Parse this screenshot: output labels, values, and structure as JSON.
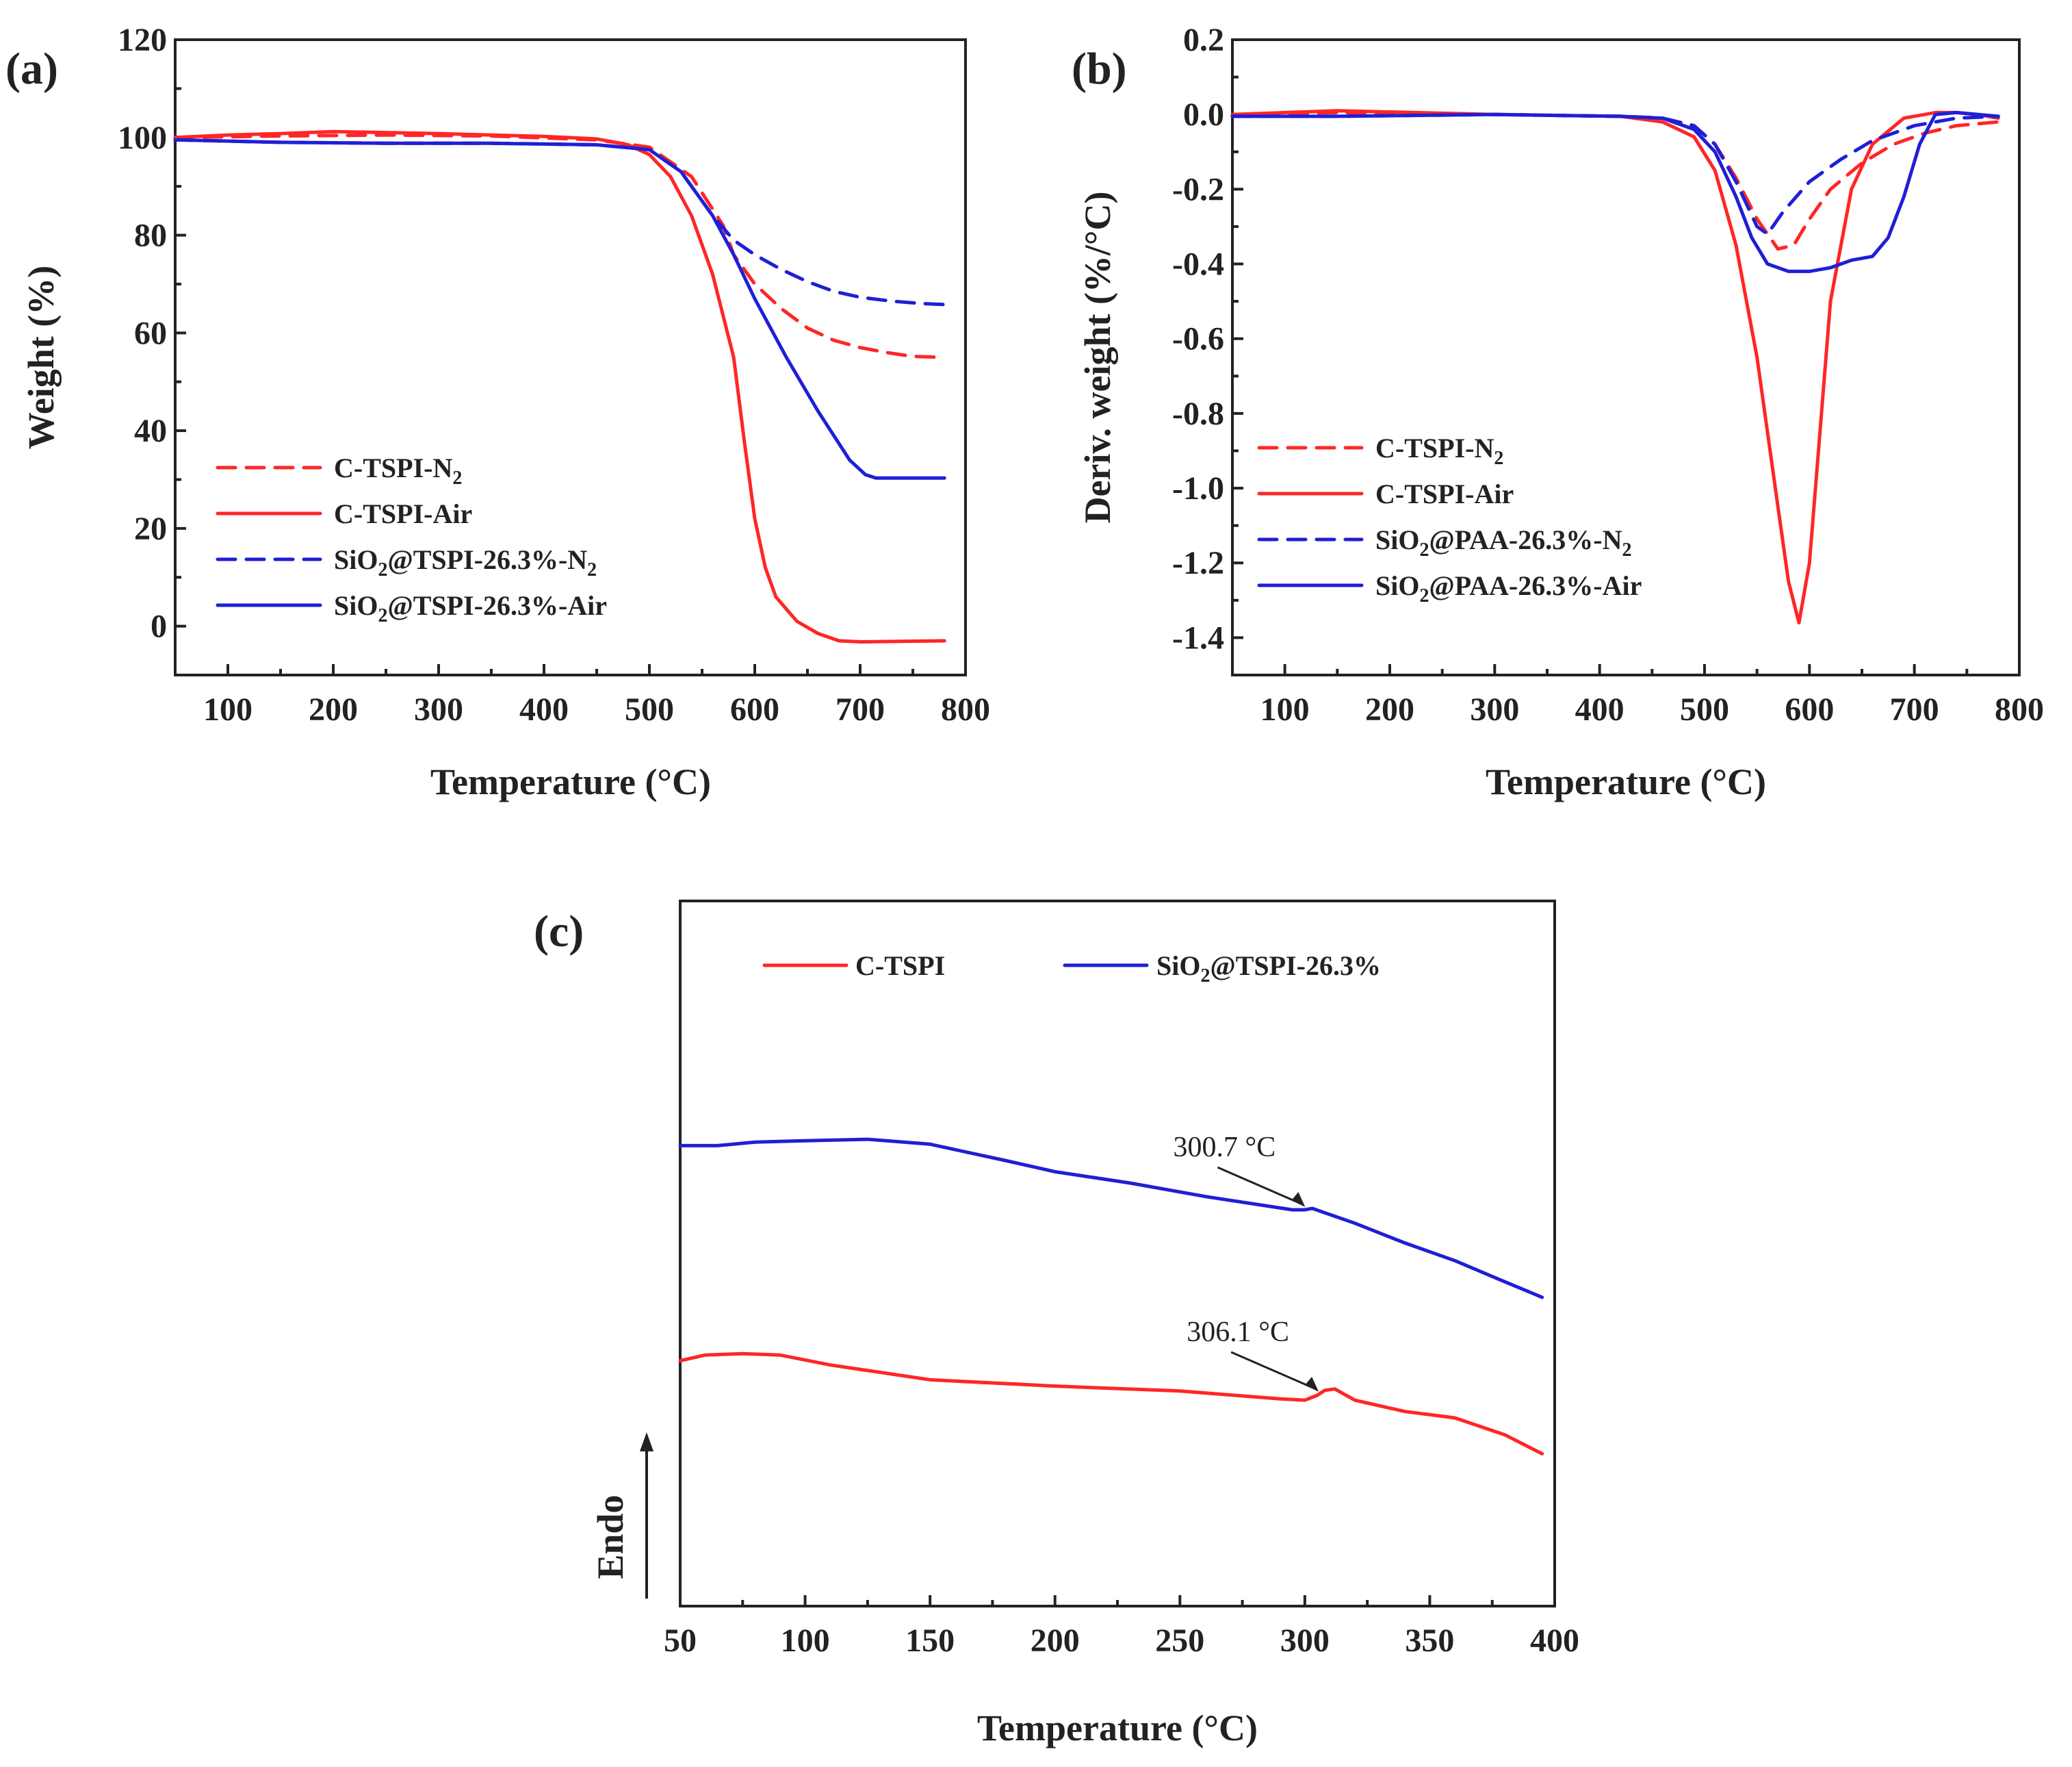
{
  "figure": {
    "colors": {
      "red": "#ff2626",
      "blue": "#1f1fd6",
      "axis": "#222222"
    }
  },
  "chart_data": [
    {
      "panel": "(a)",
      "type": "line",
      "title": "",
      "xlabel": "Temperature (°C)",
      "ylabel": "Weight (%)",
      "xlim": [
        50,
        800
      ],
      "ylim": [
        -10,
        120
      ],
      "xticks": [
        100,
        200,
        300,
        400,
        500,
        600,
        700,
        800
      ],
      "yticks": [
        0,
        20,
        40,
        60,
        80,
        100,
        120
      ],
      "legend_position": "lower-left",
      "series": [
        {
          "name": "C-TSPI-N",
          "sub": "2",
          "suffix": "",
          "color": "#ff2626",
          "dash": true,
          "x": [
            50,
            150,
            250,
            350,
            450,
            500,
            540,
            570,
            580,
            600,
            625,
            650,
            675,
            700,
            725,
            750,
            780
          ],
          "y": [
            100,
            100.3,
            100.5,
            100.3,
            99.5,
            98,
            92,
            82,
            76,
            70,
            65,
            61,
            58.5,
            57,
            56,
            55.2,
            55
          ]
        },
        {
          "name": "C-TSPI-Air",
          "sub": "",
          "suffix": "",
          "color": "#ff2626",
          "dash": false,
          "x": [
            50,
            100,
            150,
            200,
            250,
            300,
            350,
            400,
            450,
            480,
            500,
            520,
            540,
            560,
            580,
            590,
            600,
            610,
            620,
            640,
            660,
            680,
            700,
            740,
            780
          ],
          "y": [
            100,
            100.5,
            100.8,
            101.2,
            101,
            100.8,
            100.5,
            100.2,
            99.7,
            98.5,
            96.5,
            92,
            84,
            72,
            55,
            38,
            22,
            12,
            6,
            1,
            -1.5,
            -3,
            -3.2,
            -3.1,
            -3
          ]
        },
        {
          "name": "SiO",
          "sub": "2",
          "suffix": "@TSPI-26.3%-N",
          "sub2": "2",
          "color": "#1f1fd6",
          "dash": true,
          "x": [
            50,
            150,
            250,
            350,
            450,
            500,
            530,
            560,
            580,
            600,
            625,
            650,
            675,
            700,
            730,
            760,
            780
          ],
          "y": [
            99.5,
            99,
            98.8,
            98.8,
            98.5,
            97.5,
            93,
            84,
            79,
            76,
            73,
            70.5,
            68.5,
            67.3,
            66.5,
            66,
            65.8
          ]
        },
        {
          "name": "SiO",
          "sub": "2",
          "suffix": "@TSPI-26.3%-Air",
          "sub2": "",
          "color": "#1f1fd6",
          "dash": false,
          "x": [
            50,
            150,
            250,
            350,
            450,
            500,
            530,
            560,
            580,
            600,
            630,
            660,
            690,
            705,
            715,
            740,
            780
          ],
          "y": [
            99.5,
            99,
            98.8,
            98.8,
            98.5,
            97.5,
            93,
            84,
            76,
            67,
            55,
            44,
            34,
            31,
            30.3,
            30.3,
            30.3
          ]
        }
      ]
    },
    {
      "panel": "(b)",
      "type": "line",
      "title": "",
      "xlabel": "Temperature (°C)",
      "ylabel": "Deriv. weight (%/°C)",
      "xlim": [
        50,
        800
      ],
      "ylim": [
        -1.5,
        0.2
      ],
      "xticks": [
        100,
        200,
        300,
        400,
        500,
        600,
        700,
        800
      ],
      "yticks": [
        0.2,
        0.0,
        -0.2,
        -0.4,
        -0.6,
        -0.8,
        -1.0,
        -1.2,
        -1.4
      ],
      "ytick_labels": [
        "0.2",
        "0.0",
        "-0.2",
        "-0.4",
        "-0.6",
        "-0.8",
        "-1.0",
        "-1.2",
        "-1.4"
      ],
      "legend_position": "lower-left",
      "series": [
        {
          "name": "C-TSPI-N",
          "sub": "2",
          "suffix": "",
          "color": "#ff2626",
          "dash": true,
          "x": [
            50,
            150,
            300,
            420,
            460,
            490,
            510,
            530,
            550,
            570,
            585,
            600,
            620,
            650,
            680,
            710,
            740,
            780
          ],
          "y": [
            0.0,
            0.005,
            0.0,
            -0.005,
            -0.01,
            -0.03,
            -0.08,
            -0.17,
            -0.28,
            -0.36,
            -0.35,
            -0.28,
            -0.2,
            -0.13,
            -0.08,
            -0.05,
            -0.03,
            -0.02
          ]
        },
        {
          "name": "C-TSPI-Air",
          "sub": "",
          "suffix": "",
          "color": "#ff2626",
          "dash": false,
          "x": [
            50,
            150,
            300,
            420,
            460,
            490,
            510,
            530,
            550,
            560,
            570,
            580,
            590,
            600,
            610,
            620,
            640,
            660,
            690,
            720,
            740,
            760,
            780
          ],
          "y": [
            0.0,
            0.01,
            0.0,
            -0.005,
            -0.02,
            -0.06,
            -0.15,
            -0.35,
            -0.65,
            -0.85,
            -1.05,
            -1.25,
            -1.36,
            -1.2,
            -0.85,
            -0.5,
            -0.2,
            -0.08,
            -0.01,
            0.005,
            0.005,
            0.0,
            -0.01
          ]
        },
        {
          "name": "SiO",
          "sub": "2",
          "suffix": "@PAA-26.3%-N",
          "sub2": "2",
          "color": "#1f1fd6",
          "dash": true,
          "x": [
            50,
            150,
            300,
            420,
            460,
            490,
            510,
            530,
            550,
            560,
            575,
            600,
            630,
            660,
            700,
            740,
            780
          ],
          "y": [
            -0.005,
            -0.005,
            0.0,
            -0.005,
            -0.01,
            -0.03,
            -0.08,
            -0.18,
            -0.3,
            -0.32,
            -0.26,
            -0.18,
            -0.12,
            -0.07,
            -0.03,
            -0.01,
            -0.005
          ]
        },
        {
          "name": "SiO",
          "sub": "2",
          "suffix": "@PAA-26.3%-Air",
          "sub2": "",
          "color": "#1f1fd6",
          "dash": false,
          "x": [
            50,
            150,
            300,
            420,
            460,
            490,
            510,
            530,
            545,
            560,
            580,
            600,
            620,
            640,
            660,
            675,
            690,
            705,
            720,
            740,
            780
          ],
          "y": [
            -0.005,
            -0.005,
            0.0,
            -0.005,
            -0.01,
            -0.04,
            -0.1,
            -0.22,
            -0.33,
            -0.4,
            -0.42,
            -0.42,
            -0.41,
            -0.39,
            -0.38,
            -0.33,
            -0.22,
            -0.08,
            0.0,
            0.005,
            -0.005
          ]
        }
      ]
    },
    {
      "panel": "(c)",
      "type": "line",
      "title": "",
      "xlabel": "Temperature (°C)",
      "ylabel": "Endo",
      "ylabel_arrow": "up",
      "xlim": [
        50,
        400
      ],
      "ylim": [
        0,
        100
      ],
      "yticks_shown": false,
      "xticks": [
        50,
        100,
        150,
        200,
        250,
        300,
        350,
        400
      ],
      "legend_position": "top",
      "series": [
        {
          "name": "C-TSPI",
          "sub": "",
          "suffix": "",
          "color": "#ff2626",
          "dash": false,
          "x": [
            50,
            60,
            75,
            90,
            110,
            150,
            200,
            250,
            290,
            300,
            305,
            308,
            312,
            320,
            340,
            360,
            380,
            395
          ],
          "y": [
            34.8,
            35.6,
            35.8,
            35.6,
            34.2,
            32.1,
            31.2,
            30.5,
            29.4,
            29.2,
            29.9,
            30.6,
            30.8,
            29.2,
            27.6,
            26.7,
            24.3,
            21.6
          ]
        },
        {
          "name": "SiO",
          "sub": "2",
          "suffix": "@TSPI-26.3%",
          "sub2": "",
          "color": "#1f1fd6",
          "dash": false,
          "x": [
            50,
            65,
            80,
            100,
            125,
            150,
            180,
            200,
            230,
            260,
            295,
            300,
            303,
            320,
            340,
            360,
            380,
            395
          ],
          "y": [
            65.3,
            65.3,
            65.8,
            66.0,
            66.2,
            65.5,
            63.2,
            61.6,
            60.0,
            58.1,
            56.2,
            56.2,
            56.4,
            54.3,
            51.5,
            49.0,
            46.0,
            43.8
          ]
        }
      ],
      "annotations": [
        {
          "text": "300.7 °C",
          "x": 300.7,
          "y": 56.2
        },
        {
          "text": "306.1 °C",
          "x": 306.1,
          "y": 30.0
        }
      ]
    }
  ]
}
